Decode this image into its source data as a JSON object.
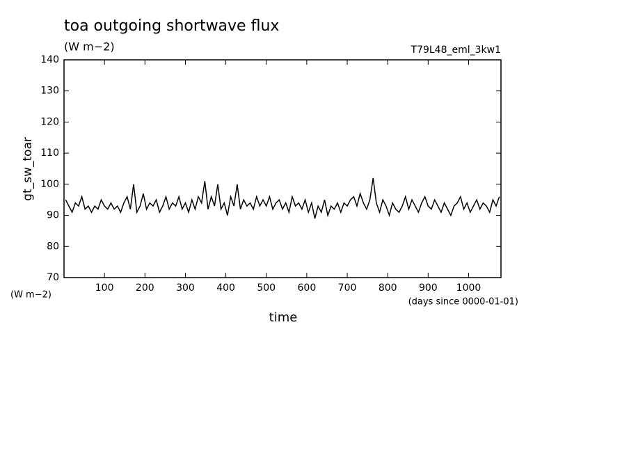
{
  "chart_data": {
    "type": "line",
    "title": "toa outgoing shortwave flux",
    "subtitle": "(W m−2)",
    "experiment": "T79L48_eml_3kw1",
    "y_label": "gt_sw_toar",
    "y_unit": "(W m−2)",
    "x_label": "time",
    "x_unit": "(days since 0000-01-01)",
    "xlim": [
      0,
      1080
    ],
    "xticks": [
      100,
      200,
      300,
      400,
      500,
      600,
      700,
      800,
      900,
      1000
    ],
    "ylim": [
      70,
      140
    ],
    "yticks": [
      70,
      80,
      90,
      100,
      110,
      120,
      130,
      140
    ],
    "series": [
      {
        "name": "gt_sw_toar",
        "color": "#000000",
        "x": [
          4,
          12,
          20,
          28,
          36,
          44,
          52,
          60,
          68,
          76,
          84,
          92,
          100,
          108,
          116,
          124,
          132,
          140,
          148,
          156,
          164,
          172,
          180,
          188,
          196,
          204,
          212,
          220,
          228,
          236,
          244,
          252,
          260,
          268,
          276,
          284,
          292,
          300,
          308,
          316,
          324,
          332,
          340,
          348,
          356,
          364,
          372,
          380,
          388,
          396,
          404,
          412,
          420,
          428,
          436,
          444,
          452,
          460,
          468,
          476,
          484,
          492,
          500,
          508,
          516,
          524,
          532,
          540,
          548,
          556,
          564,
          572,
          580,
          588,
          596,
          604,
          612,
          620,
          628,
          636,
          644,
          652,
          660,
          668,
          676,
          684,
          692,
          700,
          708,
          716,
          724,
          732,
          740,
          748,
          756,
          764,
          772,
          780,
          788,
          796,
          804,
          812,
          820,
          828,
          836,
          844,
          852,
          860,
          868,
          876,
          884,
          892,
          900,
          908,
          916,
          924,
          932,
          940,
          948,
          956,
          964,
          972,
          980,
          988,
          996,
          1004,
          1012,
          1020,
          1028,
          1036,
          1044,
          1052,
          1060,
          1068,
          1076
        ],
        "values": [
          95,
          93,
          91,
          94,
          93,
          96,
          92,
          93,
          91,
          93,
          92,
          95,
          93,
          92,
          94,
          92,
          93,
          91,
          94,
          96,
          92,
          100,
          91,
          93,
          97,
          92,
          94,
          93,
          95,
          91,
          93,
          96,
          92,
          94,
          93,
          96,
          92,
          94,
          91,
          95,
          92,
          96,
          94,
          101,
          92,
          96,
          93,
          100,
          92,
          94,
          90,
          96,
          93,
          100,
          92,
          95,
          93,
          94,
          92,
          96,
          93,
          95,
          93,
          96,
          92,
          94,
          95,
          92,
          94,
          91,
          96,
          93,
          94,
          92,
          95,
          91,
          94,
          89,
          93,
          91,
          95,
          90,
          93,
          92,
          94,
          91,
          94,
          93,
          95,
          96,
          93,
          97,
          94,
          92,
          95,
          102,
          94,
          91,
          95,
          93,
          90,
          94,
          92,
          91,
          93,
          96,
          92,
          95,
          93,
          91,
          94,
          96,
          93,
          92,
          95,
          93,
          91,
          94,
          92,
          90,
          93,
          94,
          96,
          92,
          94,
          91,
          93,
          95,
          92,
          94,
          93,
          91,
          95,
          93,
          96
        ]
      }
    ]
  }
}
